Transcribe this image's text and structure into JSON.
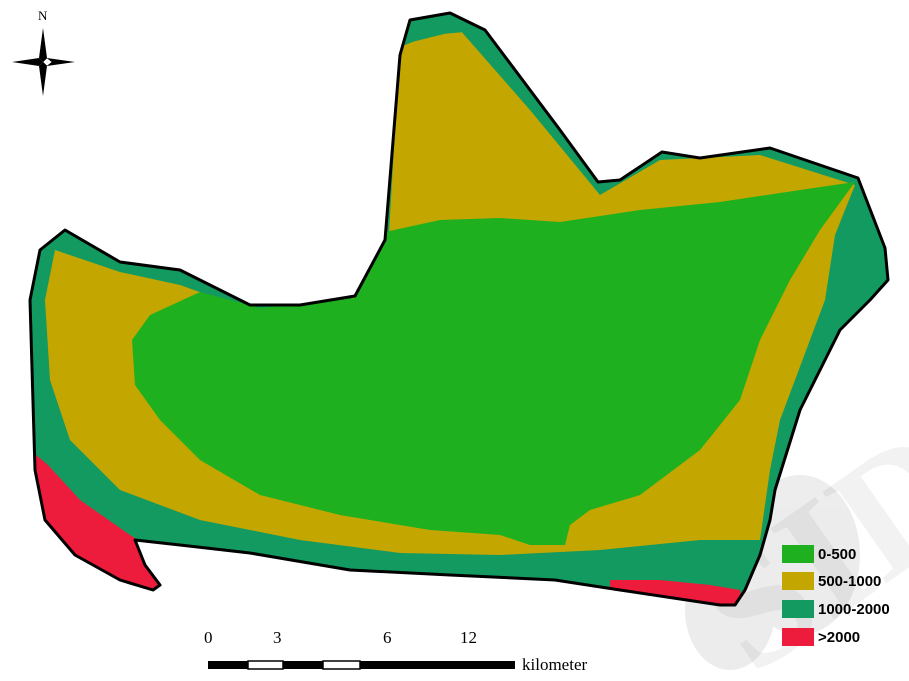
{
  "compass": {
    "north_label": "N"
  },
  "scale_bar": {
    "ticks": [
      "0",
      "3",
      "6",
      "12"
    ],
    "unit": "kilometer"
  },
  "legend": {
    "items": [
      {
        "label": "0-500",
        "color": "#1fb01f"
      },
      {
        "label": "500-1000",
        "color": "#c4a600"
      },
      {
        "label": "1000-2000",
        "color": "#139a60"
      },
      {
        "label": ">2000",
        "color": "#ee1c3c"
      }
    ]
  },
  "watermark": {
    "text": "SID"
  }
}
